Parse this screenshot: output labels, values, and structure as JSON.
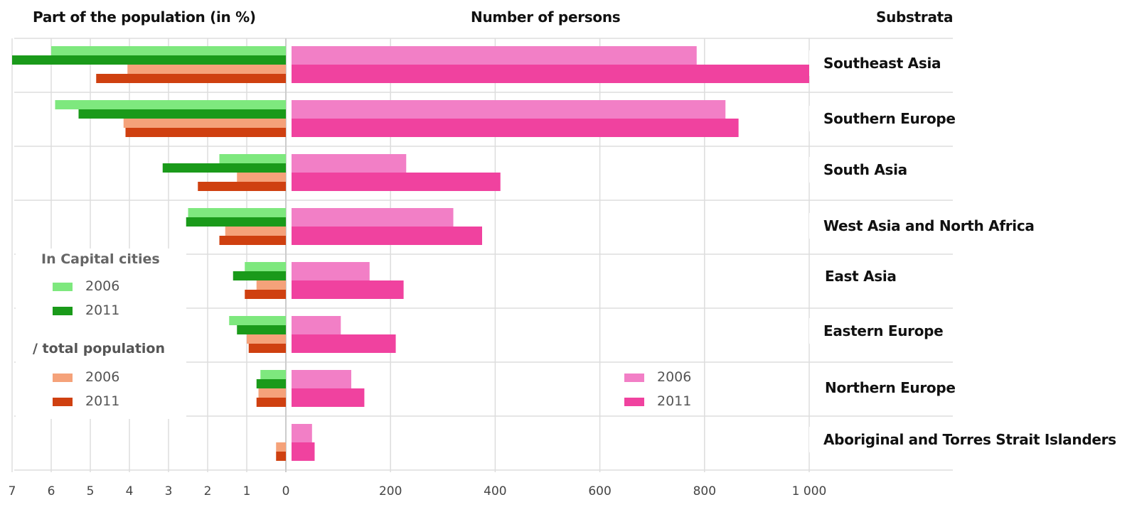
{
  "headers": {
    "left": "Part of the population (in %)",
    "middle": "Number of persons",
    "right": "Substrata"
  },
  "legend_left": {
    "group1_title": "In Capital cities",
    "group1_items": [
      "2006",
      "2011"
    ],
    "group2_title": "/ total population",
    "group2_items": [
      "2006",
      "2011"
    ]
  },
  "legend_right": {
    "items": [
      "2006",
      "2011"
    ]
  },
  "colors": {
    "capital_2006": "#7ee87e",
    "capital_2011": "#1a9a1a",
    "total_2006": "#f5a27a",
    "total_2011": "#cf4010",
    "persons_2006": "#f27fc6",
    "persons_2011": "#f0429f",
    "grid": "#dddddd"
  },
  "chart_data": {
    "type": "bar",
    "categories": [
      "Southeast Asia",
      "Southern Europe",
      "South Asia",
      "West Asia and North Africa",
      "East Asia",
      "Eastern Europe",
      "Northern Europe",
      "Aboriginal and Torres Strait Islanders"
    ],
    "left_panel": {
      "xlabel": "Part of the population (in %)",
      "xlim": [
        7,
        0
      ],
      "ticks": [
        "7",
        "6",
        "5",
        "4",
        "3",
        "2",
        "1",
        "0"
      ],
      "series": [
        {
          "name": "In Capital cities 2006",
          "values": [
            6.0,
            5.9,
            1.7,
            2.5,
            1.05,
            1.45,
            0.65,
            0
          ]
        },
        {
          "name": "In Capital cities 2011",
          "values": [
            7.0,
            5.3,
            3.15,
            2.55,
            1.35,
            1.25,
            0.75,
            0
          ]
        },
        {
          "name": "/ total population 2006",
          "values": [
            4.05,
            4.15,
            1.25,
            1.55,
            0.75,
            1.0,
            0.7,
            0.25
          ]
        },
        {
          "name": "/ total population 2011",
          "values": [
            4.85,
            4.1,
            2.25,
            1.7,
            1.05,
            0.95,
            0.75,
            0.25
          ]
        }
      ]
    },
    "right_panel": {
      "xlabel": "Number of persons",
      "xlim": [
        0,
        1000
      ],
      "ticks": [
        "0",
        "200",
        "400",
        "600",
        "800",
        "1 000"
      ],
      "series": [
        {
          "name": "2006",
          "values": [
            785,
            840,
            230,
            320,
            160,
            105,
            125,
            50
          ]
        },
        {
          "name": "2011",
          "values": [
            1000,
            865,
            410,
            375,
            225,
            210,
            150,
            55
          ]
        }
      ]
    }
  }
}
